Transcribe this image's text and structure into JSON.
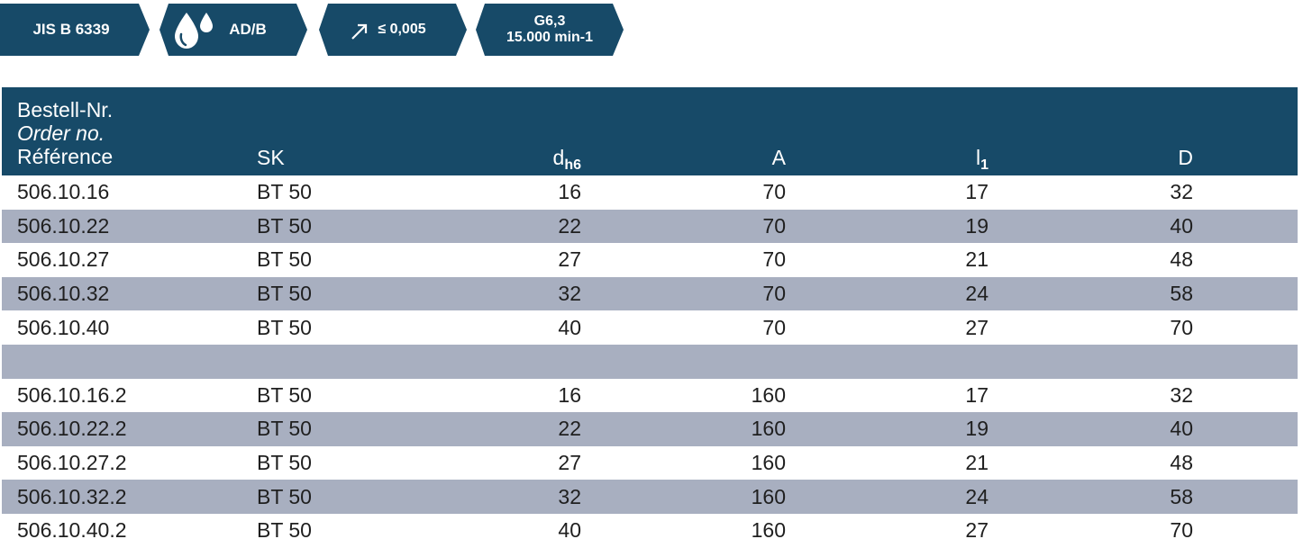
{
  "badges": {
    "standard": "JIS B 6339",
    "coolant": "AD/B",
    "coolant_icon": "coolant-drops-icon",
    "runout": "≤ 0,005",
    "runout_icon": "runout-arrow-icon",
    "balance_line1": "G6,3",
    "balance_line2": "15.000 min-1",
    "color": "#174a68"
  },
  "table": {
    "header": {
      "ref_de": "Bestell-Nr.",
      "ref_en": "Order no.",
      "ref_fr": "Référence",
      "sk": "SK",
      "d_main": "d",
      "d_sub": "h6",
      "a": "A",
      "l_main": "l",
      "l_sub": "1",
      "D": "D"
    },
    "rows": [
      {
        "ref": "506.10.16",
        "sk": "BT 50",
        "d": "16",
        "a": "70",
        "l1": "17",
        "D": "32"
      },
      {
        "ref": "506.10.22",
        "sk": "BT 50",
        "d": "22",
        "a": "70",
        "l1": "19",
        "D": "40"
      },
      {
        "ref": "506.10.27",
        "sk": "BT 50",
        "d": "27",
        "a": "70",
        "l1": "21",
        "D": "48"
      },
      {
        "ref": "506.10.32",
        "sk": "BT 50",
        "d": "32",
        "a": "70",
        "l1": "24",
        "D": "58"
      },
      {
        "ref": "506.10.40",
        "sk": "BT 50",
        "d": "40",
        "a": "70",
        "l1": "27",
        "D": "70"
      },
      {
        "ref": "",
        "sk": "",
        "d": "",
        "a": "",
        "l1": "",
        "D": ""
      },
      {
        "ref": "506.10.16.2",
        "sk": "BT 50",
        "d": "16",
        "a": "160",
        "l1": "17",
        "D": "32"
      },
      {
        "ref": "506.10.22.2",
        "sk": "BT 50",
        "d": "22",
        "a": "160",
        "l1": "19",
        "D": "40"
      },
      {
        "ref": "506.10.27.2",
        "sk": "BT 50",
        "d": "27",
        "a": "160",
        "l1": "21",
        "D": "48"
      },
      {
        "ref": "506.10.32.2",
        "sk": "BT 50",
        "d": "32",
        "a": "160",
        "l1": "24",
        "D": "58"
      },
      {
        "ref": "506.10.40.2",
        "sk": "BT 50",
        "d": "40",
        "a": "160",
        "l1": "27",
        "D": "70"
      }
    ],
    "header_color": "#174a68",
    "stripe_color": "#a8afc0"
  }
}
